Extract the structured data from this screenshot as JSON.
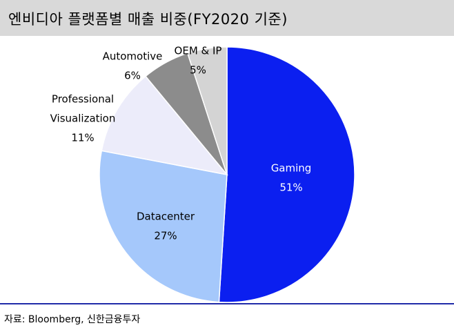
{
  "header": {
    "title": "엔비디아 플랫폼별 매출 비중(FY2020 기준)"
  },
  "footer": {
    "source": "자료: Bloomberg, 신한금융투자"
  },
  "chart_data": {
    "type": "pie",
    "title": "엔비디아 플랫폼별 매출 비중(FY2020 기준)",
    "unit": "%",
    "slices": [
      {
        "label": "Gaming",
        "value": 51,
        "text": "51%",
        "color": "#0b1ff0",
        "label_color": "#ffffff"
      },
      {
        "label": "Datacenter",
        "value": 27,
        "text": "27%",
        "color": "#a5c8fb",
        "label_color": "#000000"
      },
      {
        "label": "Professional Visualization",
        "lines": [
          "Professional",
          "Visualization"
        ],
        "value": 11,
        "text": "11%",
        "color": "#ececfa",
        "label_color": "#000000"
      },
      {
        "label": "Automotive",
        "value": 6,
        "text": "6%",
        "color": "#8c8c8c",
        "label_color": "#000000"
      },
      {
        "label": "OEM & IP",
        "value": 5,
        "text": "5%",
        "color": "#d4d4d4",
        "label_color": "#000000"
      }
    ]
  }
}
